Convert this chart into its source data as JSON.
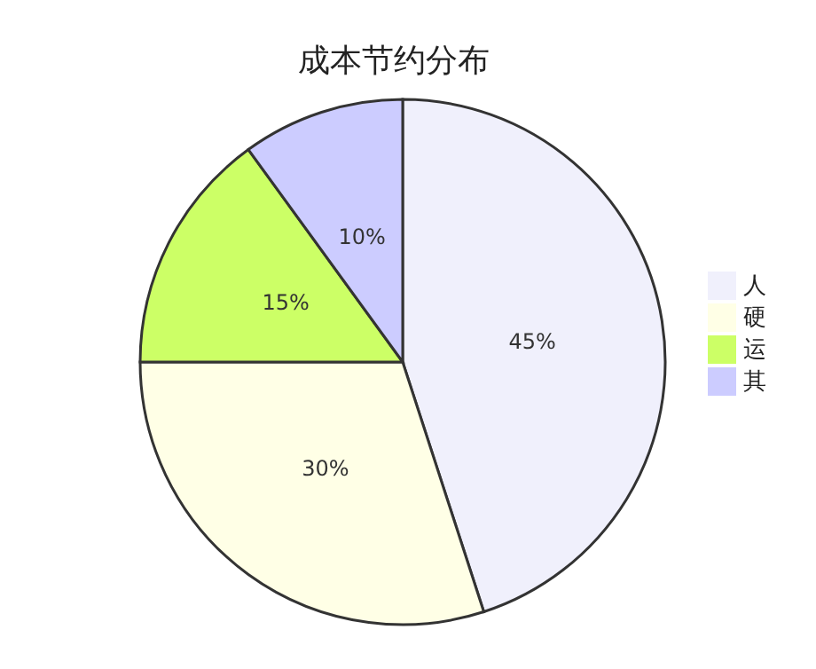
{
  "chart_data": {
    "type": "pie",
    "title": "成本节约分布",
    "categories": [
      "人",
      "硬",
      "运",
      "其"
    ],
    "values": [
      45,
      30,
      15,
      10
    ],
    "value_labels": [
      "45%",
      "30%",
      "15%",
      "10%"
    ],
    "colors": [
      "#f0f0fc",
      "#ffffe6",
      "#ccff66",
      "#ccccff"
    ],
    "legend": "right"
  }
}
